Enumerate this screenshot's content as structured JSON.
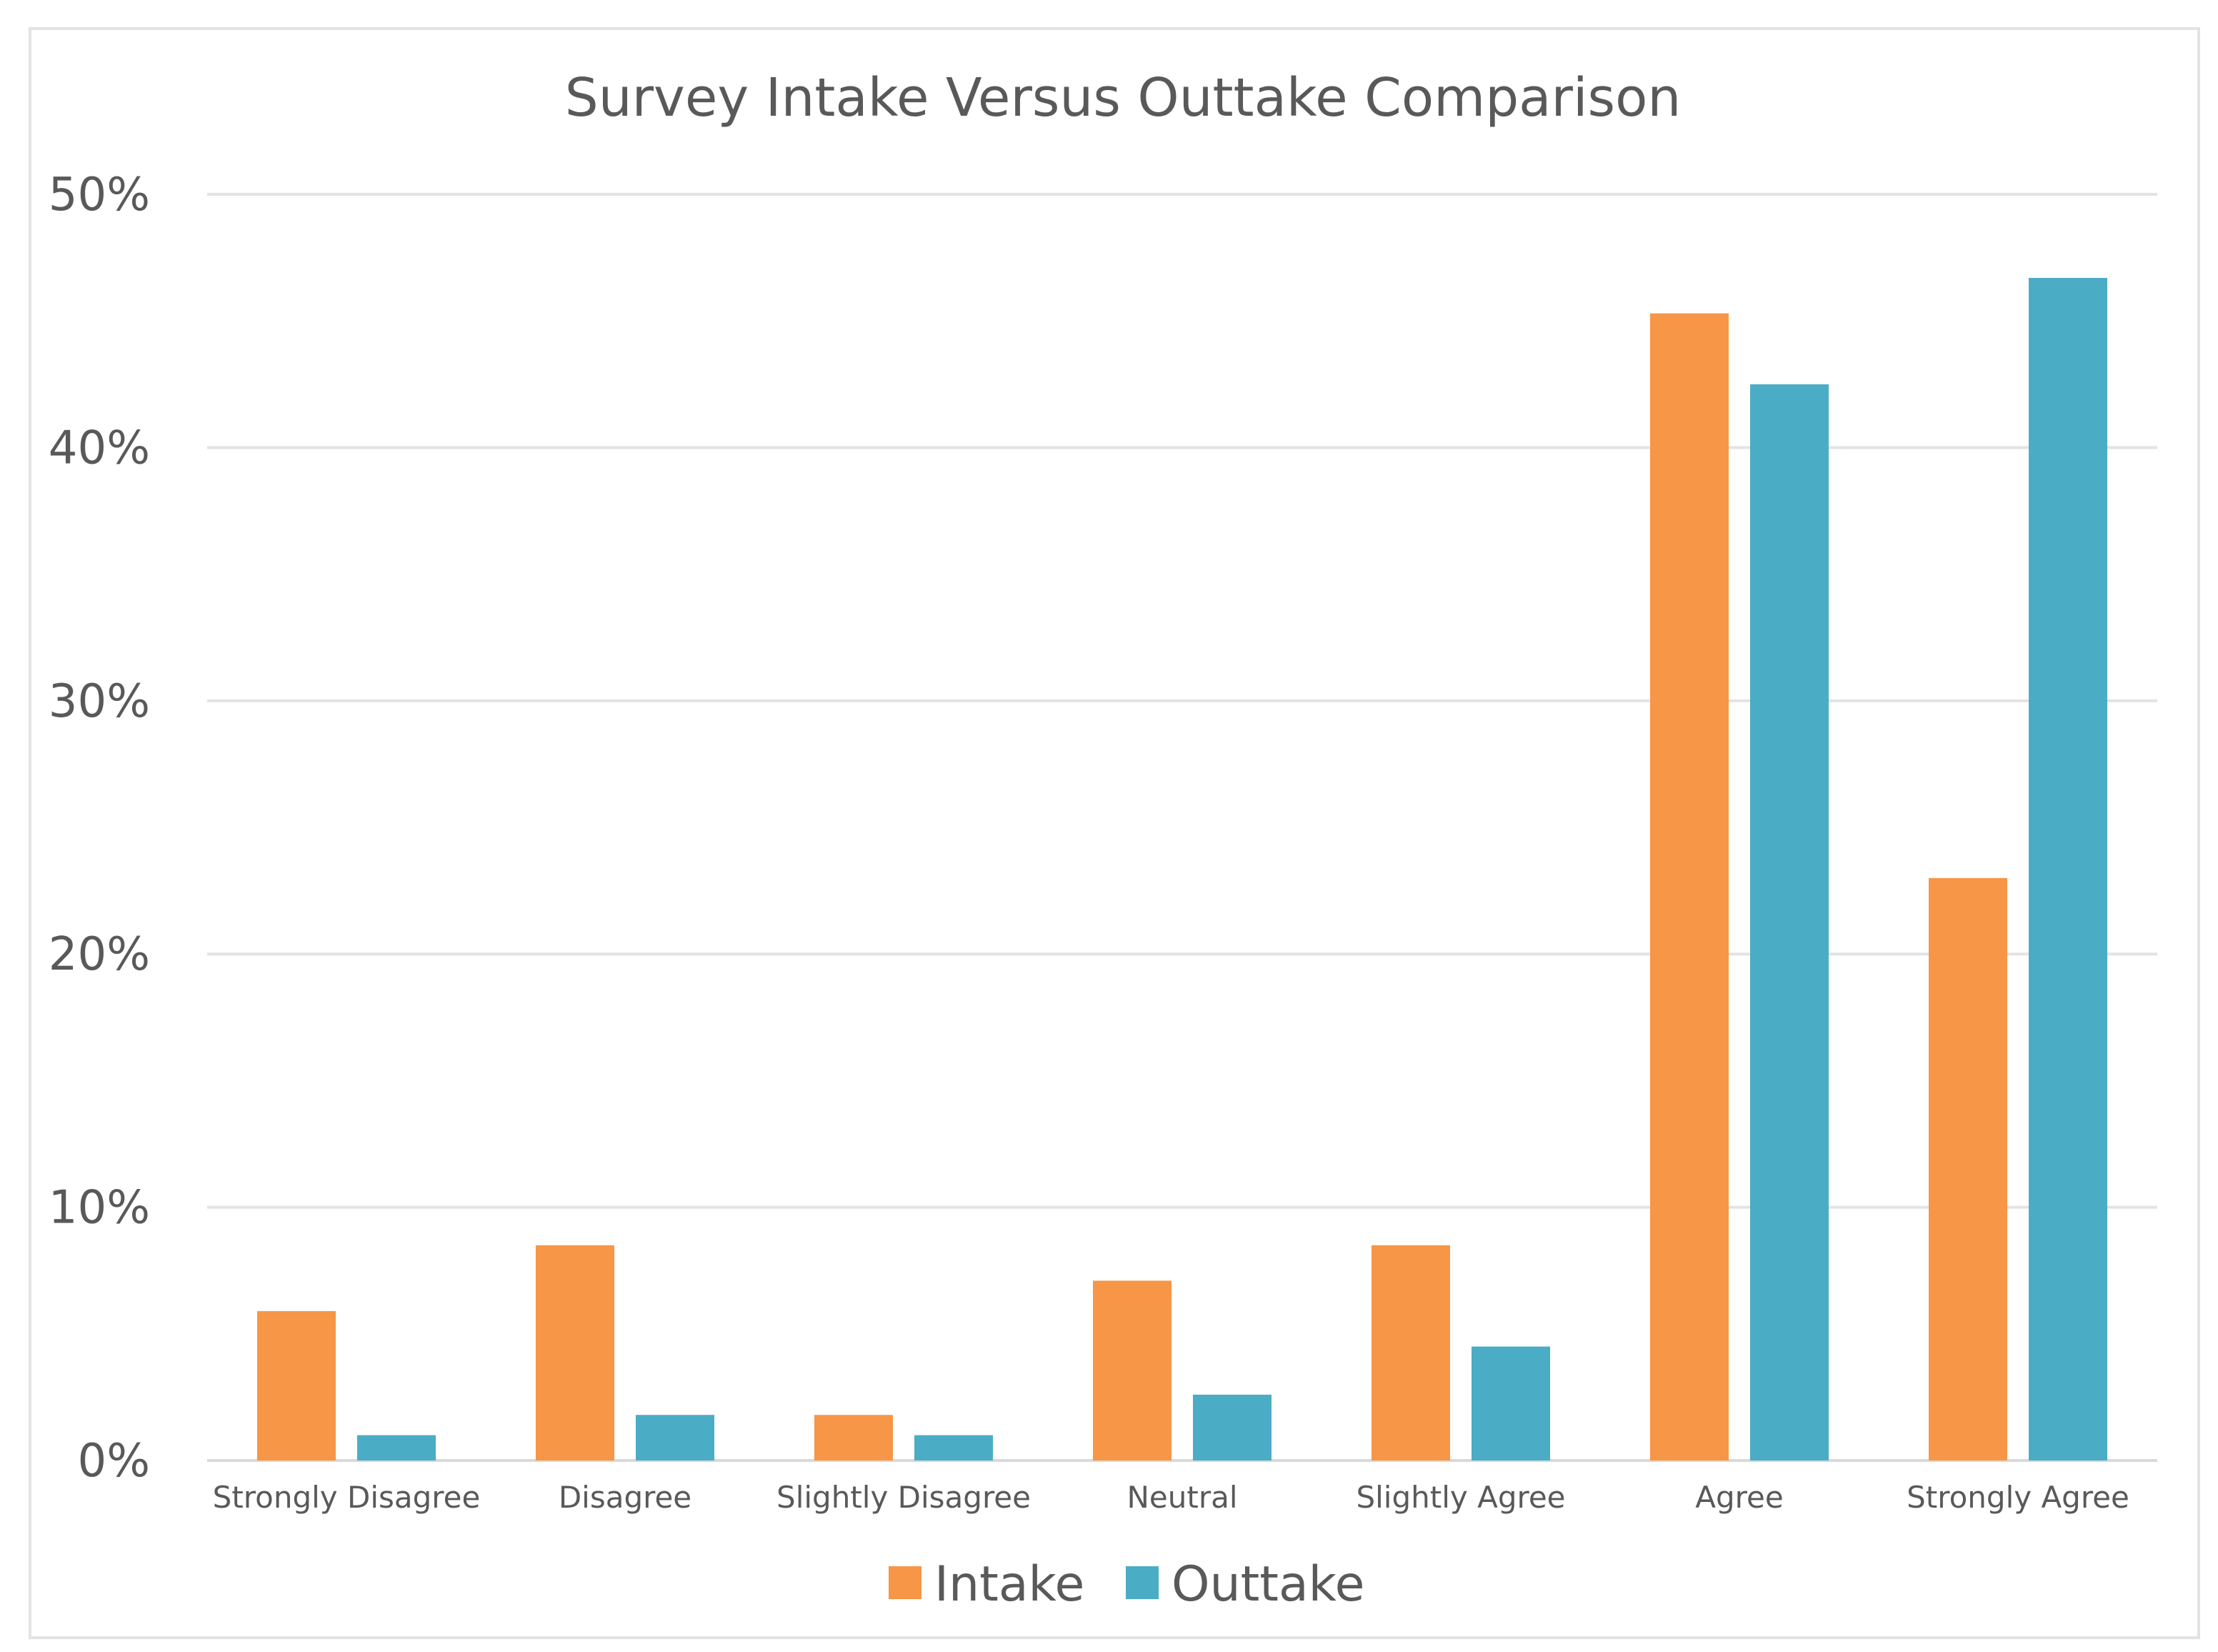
{
  "chart_data": {
    "type": "bar",
    "title": "Survey Intake Versus Outtake Comparison",
    "xlabel": "",
    "ylabel": "",
    "categories": [
      "Strongly Disagree",
      "Disagree",
      "Slightly Disagree",
      "Neutral",
      "Slightly Agree",
      "Agree",
      "Strongly Agree"
    ],
    "series": [
      {
        "name": "Intake",
        "color": "#f79646",
        "values": [
          5.9,
          8.5,
          1.8,
          7.1,
          8.5,
          45.3,
          23.0
        ]
      },
      {
        "name": "Outtake",
        "color": "#4bacc6",
        "values": [
          1.0,
          1.8,
          1.0,
          2.6,
          4.5,
          42.5,
          46.7
        ]
      }
    ],
    "ylim": [
      0,
      50
    ],
    "yticks": [
      0,
      10,
      20,
      30,
      40,
      50
    ],
    "ytick_labels": [
      "0%",
      "10%",
      "20%",
      "30%",
      "40%",
      "50%"
    ],
    "grid": true,
    "legend_position": "bottom"
  }
}
